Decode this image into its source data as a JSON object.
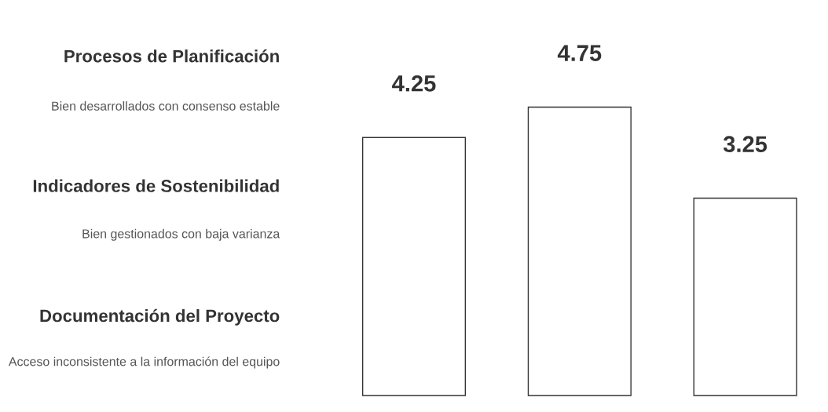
{
  "chart_data": {
    "type": "bar",
    "categories": [
      null,
      null,
      null
    ],
    "values": [
      4.25,
      4.75,
      3.25
    ],
    "color": "#ffffff",
    "data_labels": true,
    "annotations": [
      "Procesos de Planificación",
      "Bien desarrollados con consenso estable",
      "Indicadores de Sostenibilidad",
      "Bien gestionados con baja varianza",
      "Documentación del Proyecto",
      "Acceso inconsistente a la información del equipo"
    ]
  }
}
